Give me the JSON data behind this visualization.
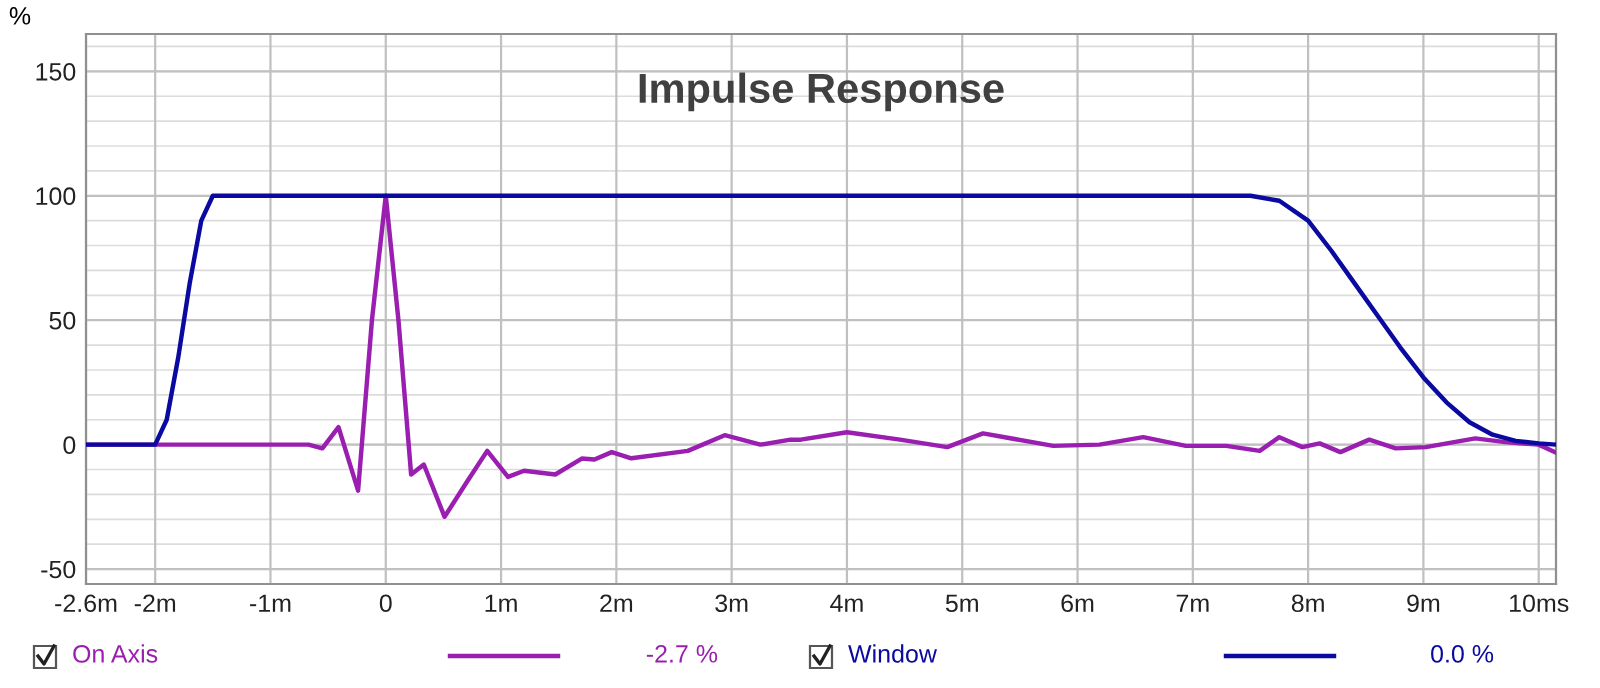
{
  "chart_data": {
    "type": "line",
    "title": "Impulse Response",
    "ylabel": "%",
    "xlim": [
      -2.6,
      10.15
    ],
    "ylim": [
      -56,
      165
    ],
    "xticks": [
      {
        "value": -2.6,
        "label": "-2.6m"
      },
      {
        "value": -2,
        "label": "-2m"
      },
      {
        "value": -1,
        "label": "-1m"
      },
      0,
      {
        "value": 1,
        "label": "1m"
      },
      {
        "value": 2,
        "label": "2m"
      },
      {
        "value": 3,
        "label": "3m"
      },
      {
        "value": 4,
        "label": "4m"
      },
      {
        "value": 5,
        "label": "5m"
      },
      {
        "value": 6,
        "label": "6m"
      },
      {
        "value": 7,
        "label": "7m"
      },
      {
        "value": 8,
        "label": "8m"
      },
      {
        "value": 9,
        "label": "9m"
      },
      {
        "value": 10,
        "label": "10ms"
      }
    ],
    "yticks": [
      -50,
      0,
      50,
      100,
      150
    ],
    "grid": true,
    "legend": "bottom",
    "marker": "none",
    "line_style": "solid",
    "annotations": [
      "-2.7 %",
      "0.0 %"
    ],
    "series": [
      {
        "name": "On Axis",
        "color": "#9a1fb0",
        "x": [
          -2.6,
          -1.0,
          -0.67,
          -0.55,
          -0.41,
          -0.24,
          -0.12,
          0.0,
          0.11,
          0.22,
          0.33,
          0.51,
          0.71,
          0.88,
          1.06,
          1.2,
          1.47,
          1.7,
          1.81,
          1.96,
          2.13,
          2.62,
          2.94,
          3.25,
          3.51,
          3.6,
          4.0,
          4.46,
          4.87,
          5.18,
          5.79,
          6.19,
          6.57,
          6.94,
          7.29,
          7.58,
          7.75,
          7.95,
          8.1,
          8.28,
          8.53,
          8.76,
          9.02,
          9.45,
          9.71,
          10.0,
          10.14
        ],
        "values": [
          0,
          0,
          0,
          -1.5,
          7,
          -18.5,
          50,
          100,
          50,
          -12,
          -8,
          -29,
          -14.5,
          -2.5,
          -13,
          -10.5,
          -12,
          -5.6,
          -6,
          -3,
          -5.5,
          -2.5,
          3.8,
          0,
          2,
          2,
          5,
          2,
          -1,
          4.5,
          -0.5,
          0,
          3,
          -0.5,
          -0.5,
          -2.5,
          3,
          -1,
          0.5,
          -3,
          2,
          -1.5,
          -1,
          2.5,
          1,
          0,
          -3
        ]
      },
      {
        "name": "Window",
        "color": "#0a0aa0",
        "x": [
          -2.6,
          -2.0,
          -1.9,
          -1.8,
          -1.7,
          -1.6,
          -1.5,
          7.5,
          7.75,
          8.0,
          8.2,
          8.4,
          8.6,
          8.8,
          9.0,
          9.2,
          9.4,
          9.6,
          9.8,
          10.0,
          10.15
        ],
        "values": [
          0,
          0,
          10,
          35,
          65,
          90,
          100,
          100,
          98,
          90,
          78,
          65,
          52,
          39,
          27,
          17,
          9,
          4,
          1.5,
          0.5,
          0
        ]
      }
    ]
  }
}
